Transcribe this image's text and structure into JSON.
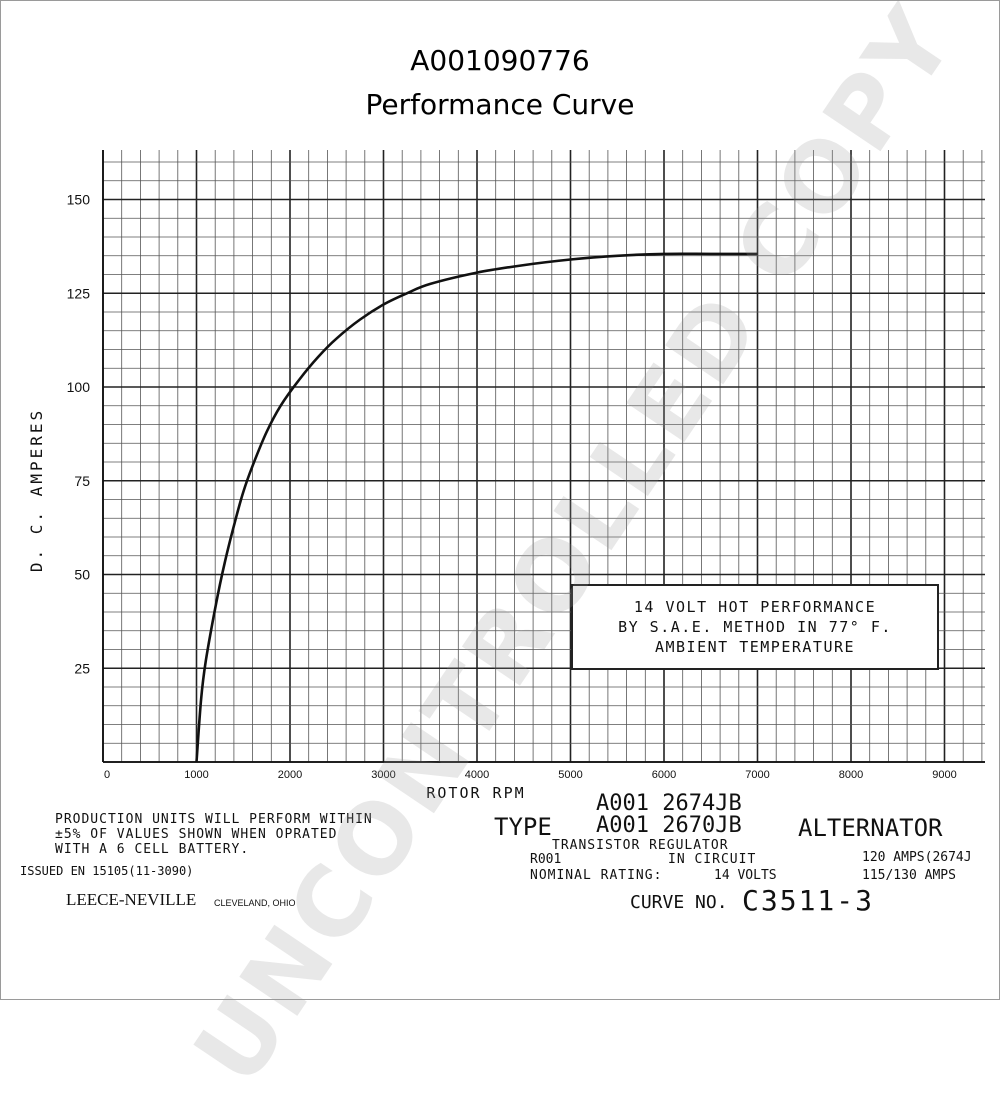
{
  "page": {
    "title_line1": "A001090776",
    "title_line2": "Performance Curve"
  },
  "chart_data": {
    "type": "line",
    "title": "",
    "xlabel": "ROTOR RPM",
    "ylabel": "D. C. AMPERES",
    "xlim": [
      0,
      9500
    ],
    "ylim": [
      0,
      160
    ],
    "x_ticks": [
      0,
      1000,
      2000,
      3000,
      4000,
      5000,
      6000,
      7000,
      8000,
      9000
    ],
    "x_tick_labels": [
      "0",
      "1000",
      "2000",
      "3000",
      "4000",
      "5000",
      "6000",
      "7000",
      "8000",
      "9000"
    ],
    "y_ticks": [
      25,
      50,
      75,
      100,
      125,
      150
    ],
    "y_tick_labels": [
      "25",
      "50",
      "75",
      "100",
      "125",
      "150"
    ],
    "grid": true,
    "series": [
      {
        "name": "",
        "x": [
          1000,
          1050,
          1100,
          1200,
          1300,
          1400,
          1500,
          1600,
          1750,
          1900,
          2100,
          2300,
          2500,
          2750,
          3000,
          3250,
          3500,
          4000,
          4500,
          5000,
          5500,
          6000,
          6500,
          7000
        ],
        "y": [
          0,
          17,
          27,
          41,
          53,
          63,
          72,
          79,
          88,
          95,
          102,
          108,
          113,
          118,
          122,
          125,
          127.5,
          130.5,
          132.5,
          134,
          135,
          135.5,
          135.5,
          135.5
        ]
      }
    ]
  },
  "annotations": {
    "box_line1": "14 VOLT HOT PERFORMANCE",
    "box_line2": "BY S.A.E. METHOD IN 77° F.",
    "box_line3": "AMBIENT TEMPERATURE"
  },
  "footer": {
    "production_line1": "PRODUCTION UNITS WILL PERFORM WITHIN",
    "production_line2": "±5% OF VALUES SHOWN WHEN OPRATED",
    "production_line3": "WITH A   6   CELL BATTERY.",
    "issued": "ISSUED EN 15105(11-3090)",
    "company": "LEECE-NEVILLE",
    "city": "CLEVELAND, OHIO",
    "model_top": "A001 2674JB",
    "type_label": "TYPE",
    "model_bottom": "A001 2670JB",
    "alternator": "ALTERNATOR",
    "regulator_line1": "TRANSISTOR REGULATOR",
    "regulator_code": "R001",
    "regulator_line2": "IN CIRCUIT",
    "rating_label": "NOMINAL RATING:",
    "rating_volts": "14 VOLTS",
    "amps_line1": "120 AMPS(2674J",
    "amps_line2": "115/130 AMPS",
    "curve_label": "CURVE NO.",
    "curve_no": "C3511-3"
  },
  "watermark": "UNCONTROLLED COPY"
}
